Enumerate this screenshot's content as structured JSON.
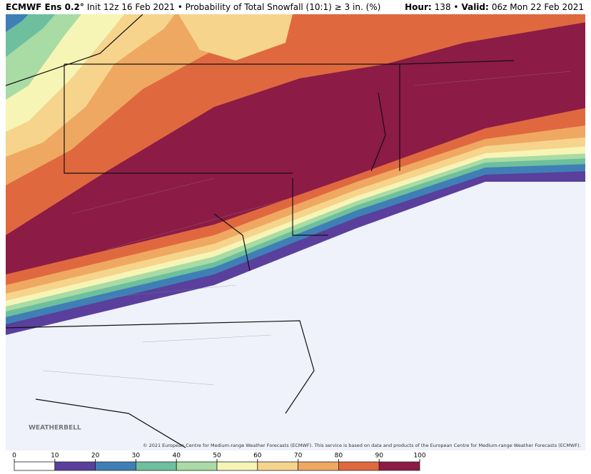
{
  "header": {
    "left": [
      {
        "text": "ECMWF Ens 0.2°",
        "bold": true
      },
      {
        "text": "Init 12z 16 Feb 2021 • Probability of Total Snowfall (10:1) ≥ 3 in. (%)",
        "bold": false
      }
    ],
    "right": [
      {
        "text": "Hour:",
        "bold": true
      },
      {
        "text": "138 •",
        "bold": false
      },
      {
        "text": "Valid:",
        "bold": true
      },
      {
        "text": "06z Mon 22 Feb 2021",
        "bold": false
      }
    ]
  },
  "watermark": "WEATHERBELL",
  "copyright": "© 2021 European Centre for Medium-range Weather Forecasts (ECMWF). This service is based on data and products of the European Centre for Medium-range Weather Forecasts (ECMWF).",
  "legend": {
    "ticks": [
      0,
      10,
      20,
      30,
      40,
      50,
      60,
      70,
      80,
      90,
      100
    ],
    "colors": [
      "#ffffff",
      "#5a3f9c",
      "#3f7fb6",
      "#6dbf9e",
      "#a9dba4",
      "#f6f5b6",
      "#f6d48c",
      "#efa862",
      "#e0683f",
      "#8c1b45"
    ]
  }
}
